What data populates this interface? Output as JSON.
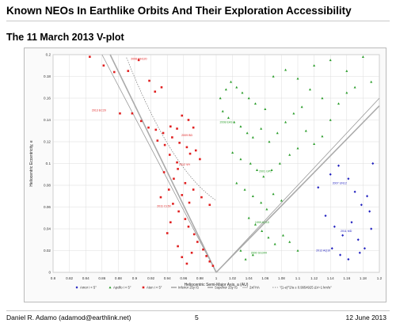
{
  "page": {
    "title": "Known NEOs In Earthlike Orbits And Their Exploration Accessibility",
    "subtitle": "The 11 March 2013 V-plot",
    "footer_left": "Daniel R. Adamo (adamod@earthlink.net)",
    "footer_center": "5",
    "footer_right": "12 June 2013"
  },
  "chart_data": {
    "type": "scatter",
    "xlabel": "Heliocentric Semi-Major Axis, a (AU)",
    "ylabel": "Heliocentric Eccentricity, e",
    "xlim": [
      0.8,
      1.2
    ],
    "ylim": [
      0,
      0.2
    ],
    "x_ticks": [
      "0.8",
      "0.82",
      "0.84",
      "0.86",
      "0.88",
      "0.9",
      "0.92",
      "0.94",
      "0.96",
      "0.98",
      "1",
      "1.02",
      "1.04",
      "1.06",
      "1.08",
      "1.1",
      "1.12",
      "1.14",
      "1.16",
      "1.18",
      "1.2"
    ],
    "y_ticks": [
      "0",
      "0.02",
      "0.04",
      "0.06",
      "0.08",
      "0.1",
      "0.12",
      "0.14",
      "0.16",
      "0.18",
      "0.2"
    ],
    "grid": true,
    "legend_position": "bottom",
    "legend": [
      "Amor i < 5°",
      "Apollo i < 5°",
      "Aten i < 5°",
      "Inferior 25y IS",
      "Superior 25y IS",
      "2xFHA",
      "\"(1-e)^2/a ≥ 0.9954925 ΔV=1 km/s\""
    ],
    "colors": {
      "amor": "#1f1fbf",
      "apollo": "#2a9d2a",
      "aten": "#e02020",
      "synodic": "#aaaaaa",
      "fha": "#999999",
      "dv": "#777777"
    },
    "curves": {
      "inferior_25y_IS": {
        "x": [
          0.87,
          1.0
        ],
        "y": [
          0.2,
          0.0
        ]
      },
      "superior_25y_IS": {
        "x": [
          1.0,
          1.2
        ],
        "y": [
          0.0,
          0.153
        ]
      },
      "twice_FHA": [
        {
          "x": [
            0.86,
            1.0
          ],
          "y": [
            0.2,
            0.0
          ]
        },
        {
          "x": [
            1.0,
            1.2
          ],
          "y": [
            0.0,
            0.16
          ]
        }
      ],
      "dv_1kms": {
        "a_min": 0.83,
        "a_max": 1.2
      }
    },
    "series": [
      {
        "name": "Aten i < 5°",
        "color": "#e02020",
        "marker": "square",
        "points": [
          {
            "x": 0.845,
            "y": 0.198
          },
          {
            "x": 0.862,
            "y": 0.19
          },
          {
            "x": 0.875,
            "y": 0.184
          },
          {
            "x": 0.892,
            "y": 0.185
          },
          {
            "x": 0.905,
            "y": 0.195
          },
          {
            "x": 0.918,
            "y": 0.176
          },
          {
            "x": 0.925,
            "y": 0.166
          },
          {
            "x": 0.933,
            "y": 0.17
          },
          {
            "x": 0.882,
            "y": 0.146
          },
          {
            "x": 0.897,
            "y": 0.146
          },
          {
            "x": 0.908,
            "y": 0.139
          },
          {
            "x": 0.917,
            "y": 0.133
          },
          {
            "x": 0.926,
            "y": 0.131
          },
          {
            "x": 0.935,
            "y": 0.128
          },
          {
            "x": 0.944,
            "y": 0.134
          },
          {
            "x": 0.952,
            "y": 0.132
          },
          {
            "x": 0.958,
            "y": 0.144
          },
          {
            "x": 0.966,
            "y": 0.14
          },
          {
            "x": 0.972,
            "y": 0.133
          },
          {
            "x": 0.928,
            "y": 0.121
          },
          {
            "x": 0.937,
            "y": 0.117
          },
          {
            "x": 0.946,
            "y": 0.124
          },
          {
            "x": 0.955,
            "y": 0.119
          },
          {
            "x": 0.964,
            "y": 0.115
          },
          {
            "x": 0.968,
            "y": 0.109
          },
          {
            "x": 0.975,
            "y": 0.112
          },
          {
            "x": 0.98,
            "y": 0.104
          },
          {
            "x": 0.943,
            "y": 0.108
          },
          {
            "x": 0.952,
            "y": 0.101
          },
          {
            "x": 0.936,
            "y": 0.092
          },
          {
            "x": 0.948,
            "y": 0.086
          },
          {
            "x": 0.953,
            "y": 0.095
          },
          {
            "x": 0.962,
            "y": 0.082
          },
          {
            "x": 0.972,
            "y": 0.076
          },
          {
            "x": 0.982,
            "y": 0.069
          },
          {
            "x": 0.992,
            "y": 0.062
          },
          {
            "x": 0.958,
            "y": 0.071
          },
          {
            "x": 0.967,
            "y": 0.064
          },
          {
            "x": 0.942,
            "y": 0.076
          },
          {
            "x": 0.932,
            "y": 0.069
          },
          {
            "x": 0.947,
            "y": 0.063
          },
          {
            "x": 0.954,
            "y": 0.056
          },
          {
            "x": 0.962,
            "y": 0.049
          },
          {
            "x": 0.966,
            "y": 0.042
          },
          {
            "x": 0.973,
            "y": 0.035
          },
          {
            "x": 0.977,
            "y": 0.028
          },
          {
            "x": 0.984,
            "y": 0.021
          },
          {
            "x": 0.988,
            "y": 0.015
          },
          {
            "x": 0.992,
            "y": 0.01
          },
          {
            "x": 0.996,
            "y": 0.006
          },
          {
            "x": 0.94,
            "y": 0.036
          },
          {
            "x": 0.944,
            "y": 0.046
          },
          {
            "x": 0.953,
            "y": 0.024
          },
          {
            "x": 0.958,
            "y": 0.014
          },
          {
            "x": 0.964,
            "y": 0.008
          },
          {
            "x": 0.97,
            "y": 0.018
          }
        ]
      },
      {
        "name": "Apollo i < 5°",
        "color": "#2a9d2a",
        "marker": "triangle",
        "points": [
          {
            "x": 1.005,
            "y": 0.16
          },
          {
            "x": 1.012,
            "y": 0.168
          },
          {
            "x": 1.018,
            "y": 0.175
          },
          {
            "x": 1.025,
            "y": 0.17
          },
          {
            "x": 1.032,
            "y": 0.165
          },
          {
            "x": 1.04,
            "y": 0.16
          },
          {
            "x": 1.048,
            "y": 0.155
          },
          {
            "x": 1.06,
            "y": 0.15
          },
          {
            "x": 1.008,
            "y": 0.148
          },
          {
            "x": 1.015,
            "y": 0.142
          },
          {
            "x": 1.022,
            "y": 0.138
          },
          {
            "x": 1.03,
            "y": 0.134
          },
          {
            "x": 1.038,
            "y": 0.128
          },
          {
            "x": 1.045,
            "y": 0.124
          },
          {
            "x": 1.055,
            "y": 0.132
          },
          {
            "x": 1.065,
            "y": 0.12
          },
          {
            "x": 1.075,
            "y": 0.128
          },
          {
            "x": 1.085,
            "y": 0.138
          },
          {
            "x": 1.095,
            "y": 0.146
          },
          {
            "x": 1.105,
            "y": 0.152
          },
          {
            "x": 1.11,
            "y": 0.13
          },
          {
            "x": 1.12,
            "y": 0.118
          },
          {
            "x": 1.13,
            "y": 0.125
          },
          {
            "x": 1.14,
            "y": 0.14
          },
          {
            "x": 1.15,
            "y": 0.155
          },
          {
            "x": 1.16,
            "y": 0.165
          },
          {
            "x": 1.17,
            "y": 0.17
          },
          {
            "x": 1.02,
            "y": 0.11
          },
          {
            "x": 1.03,
            "y": 0.104
          },
          {
            "x": 1.042,
            "y": 0.1
          },
          {
            "x": 1.05,
            "y": 0.094
          },
          {
            "x": 1.058,
            "y": 0.088
          },
          {
            "x": 1.068,
            "y": 0.094
          },
          {
            "x": 1.078,
            "y": 0.1
          },
          {
            "x": 1.09,
            "y": 0.108
          },
          {
            "x": 1.1,
            "y": 0.114
          },
          {
            "x": 1.025,
            "y": 0.082
          },
          {
            "x": 1.035,
            "y": 0.076
          },
          {
            "x": 1.045,
            "y": 0.07
          },
          {
            "x": 1.055,
            "y": 0.064
          },
          {
            "x": 1.062,
            "y": 0.058
          },
          {
            "x": 1.07,
            "y": 0.072
          },
          {
            "x": 1.08,
            "y": 0.066
          },
          {
            "x": 1.04,
            "y": 0.05
          },
          {
            "x": 1.048,
            "y": 0.044
          },
          {
            "x": 1.056,
            "y": 0.038
          },
          {
            "x": 1.064,
            "y": 0.032
          },
          {
            "x": 1.072,
            "y": 0.026
          },
          {
            "x": 1.082,
            "y": 0.034
          },
          {
            "x": 1.09,
            "y": 0.028
          },
          {
            "x": 1.1,
            "y": 0.02
          },
          {
            "x": 1.03,
            "y": 0.02
          },
          {
            "x": 1.036,
            "y": 0.012
          },
          {
            "x": 1.045,
            "y": 0.016
          },
          {
            "x": 1.12,
            "y": 0.19
          },
          {
            "x": 1.14,
            "y": 0.195
          },
          {
            "x": 1.16,
            "y": 0.185
          },
          {
            "x": 1.18,
            "y": 0.198
          },
          {
            "x": 1.19,
            "y": 0.175
          },
          {
            "x": 1.07,
            "y": 0.18
          },
          {
            "x": 1.085,
            "y": 0.186
          },
          {
            "x": 1.1,
            "y": 0.178
          },
          {
            "x": 1.115,
            "y": 0.168
          },
          {
            "x": 1.13,
            "y": 0.16
          }
        ]
      },
      {
        "name": "Amor i < 5°",
        "color": "#1f1fbf",
        "marker": "diamond",
        "points": [
          {
            "x": 1.125,
            "y": 0.078
          },
          {
            "x": 1.14,
            "y": 0.09
          },
          {
            "x": 1.15,
            "y": 0.098
          },
          {
            "x": 1.162,
            "y": 0.086
          },
          {
            "x": 1.17,
            "y": 0.074
          },
          {
            "x": 1.178,
            "y": 0.062
          },
          {
            "x": 1.185,
            "y": 0.07
          },
          {
            "x": 1.188,
            "y": 0.056
          },
          {
            "x": 1.134,
            "y": 0.052
          },
          {
            "x": 1.145,
            "y": 0.042
          },
          {
            "x": 1.155,
            "y": 0.034
          },
          {
            "x": 1.166,
            "y": 0.046
          },
          {
            "x": 1.174,
            "y": 0.03
          },
          {
            "x": 1.182,
            "y": 0.022
          },
          {
            "x": 1.19,
            "y": 0.04
          },
          {
            "x": 1.142,
            "y": 0.022
          },
          {
            "x": 1.152,
            "y": 0.016
          },
          {
            "x": 1.162,
            "y": 0.012
          },
          {
            "x": 1.176,
            "y": 0.018
          },
          {
            "x": 1.192,
            "y": 0.1
          }
        ]
      }
    ],
    "object_labels": [
      {
        "text": "2006 RH120",
        "x": 0.893,
        "y": 0.196,
        "color": "#e02020"
      },
      {
        "text": "2013 EC20",
        "x": 0.845,
        "y": 0.149,
        "color": "#e02020"
      },
      {
        "text": "2009 BD",
        "x": 0.955,
        "y": 0.126,
        "color": "#e02020"
      },
      {
        "text": "2012 VH",
        "x": 0.952,
        "y": 0.099,
        "color": "#e02020"
      },
      {
        "text": "2011 CL50",
        "x": 0.925,
        "y": 0.061,
        "color": "#e02020"
      },
      {
        "text": "2008 EA9",
        "x": 1.002,
        "y": 0.138,
        "color": "#2a9d2a"
      },
      {
        "text": "2001 GP2",
        "x": 1.05,
        "y": 0.093,
        "color": "#2a9d2a"
      },
      {
        "text": "1999 AO10",
        "x": 1.045,
        "y": 0.046,
        "color": "#2a9d2a"
      },
      {
        "text": "2000 SG344",
        "x": 1.04,
        "y": 0.018,
        "color": "#2a9d2a"
      },
      {
        "text": "2007 UN12",
        "x": 1.14,
        "y": 0.082,
        "color": "#1f1fbf"
      },
      {
        "text": "2011 MD",
        "x": 1.15,
        "y": 0.038,
        "color": "#1f1fbf"
      },
      {
        "text": "2012 AQ10",
        "x": 1.12,
        "y": 0.02,
        "color": "#1f1fbf"
      }
    ]
  }
}
